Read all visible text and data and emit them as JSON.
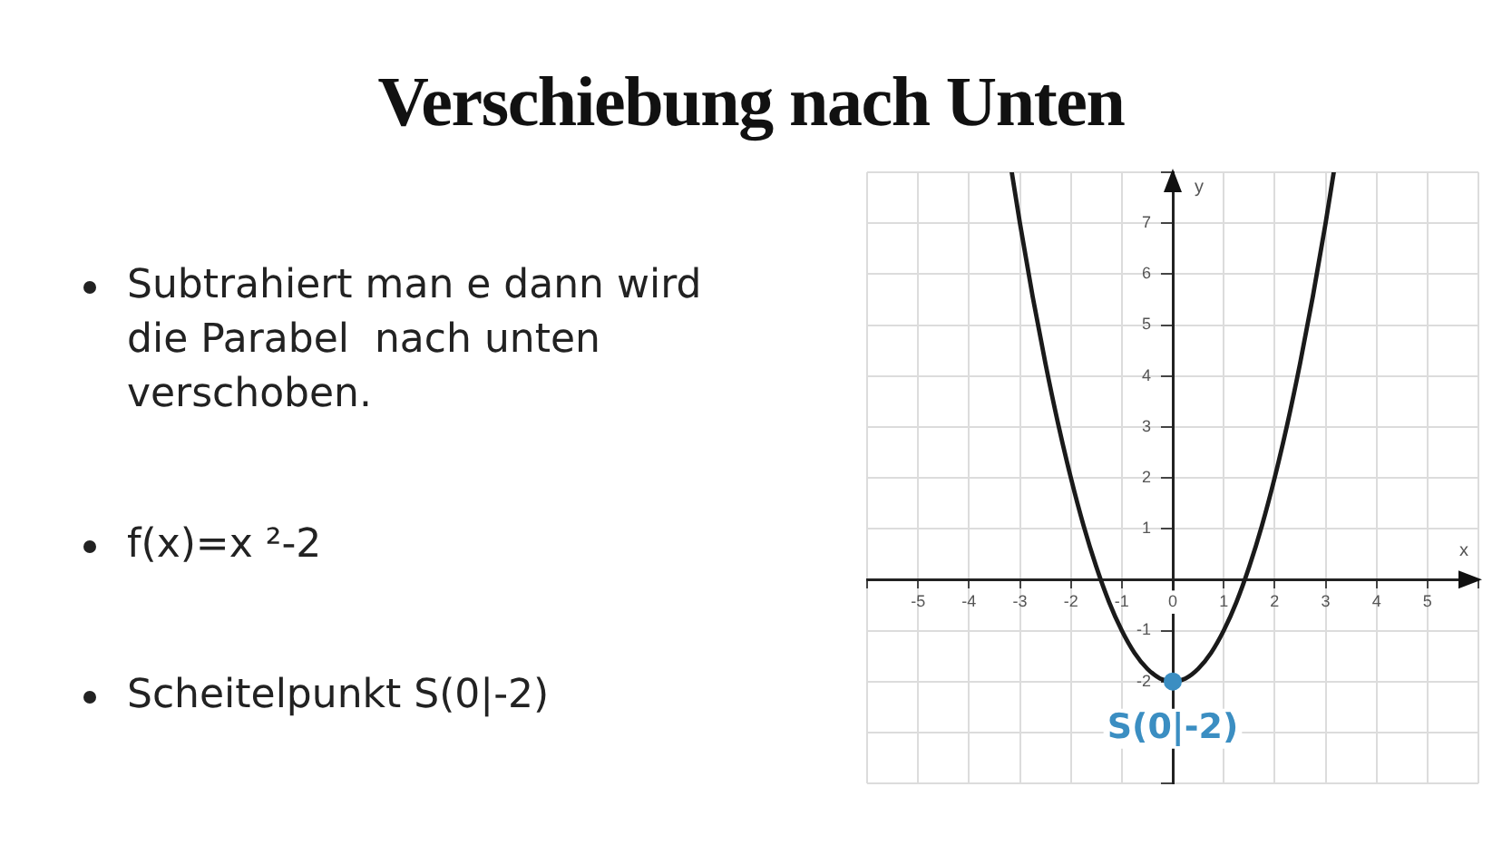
{
  "chart_data": {
    "type": "line",
    "title": "Verschiebung nach Unten",
    "annotations": [
      "Subtrahiert man e dann wird die Parabel  nach unten verschoben.",
      "f(x)=x ²-2",
      "Scheitelpunkt S(0|-2)",
      {
        "text": "S(0|-2)",
        "x": 0,
        "y": -2
      }
    ],
    "xlabel": "x",
    "ylabel": "y",
    "series": [
      {
        "color": "#1a1a1a",
        "marker": "none",
        "x": [
          -3.16,
          -3,
          -2.75,
          -2.5,
          -2.25,
          -2,
          -1.75,
          -1.5,
          -1.25,
          -1,
          -0.75,
          -0.5,
          -0.25,
          0,
          0.25,
          0.5,
          0.75,
          1,
          1.25,
          1.5,
          1.75,
          2,
          2.25,
          2.5,
          2.75,
          3,
          3.16
        ],
        "values": [
          8,
          7,
          5.56,
          4.25,
          3.06,
          2,
          1.06,
          0.25,
          -0.44,
          -1,
          -1.44,
          -1.75,
          -1.94,
          -2,
          -1.94,
          -1.75,
          -1.44,
          -1,
          -0.44,
          0.25,
          1.06,
          2,
          3.06,
          4.25,
          5.56,
          7,
          8
        ]
      },
      {
        "type": "scatter",
        "color": "#3b8ec2",
        "marker": "circle",
        "x": [
          0
        ],
        "values": [
          -2
        ]
      }
    ],
    "xlim": [
      -6,
      6
    ],
    "ylim": [
      -4,
      8
    ],
    "xticks": [
      {
        "value": -6,
        "label": null
      },
      -5,
      -4,
      -3,
      -2,
      -1,
      0,
      1,
      2,
      3,
      4,
      5,
      {
        "value": 6,
        "label": null
      }
    ],
    "yticks": [
      {
        "value": -4,
        "label": null
      },
      {
        "value": -3,
        "label": null
      },
      -2,
      -1,
      {
        "value": 0,
        "label": null
      },
      1,
      2,
      3,
      4,
      5,
      6,
      7,
      {
        "value": 8,
        "label": null
      }
    ],
    "grid": true
  }
}
